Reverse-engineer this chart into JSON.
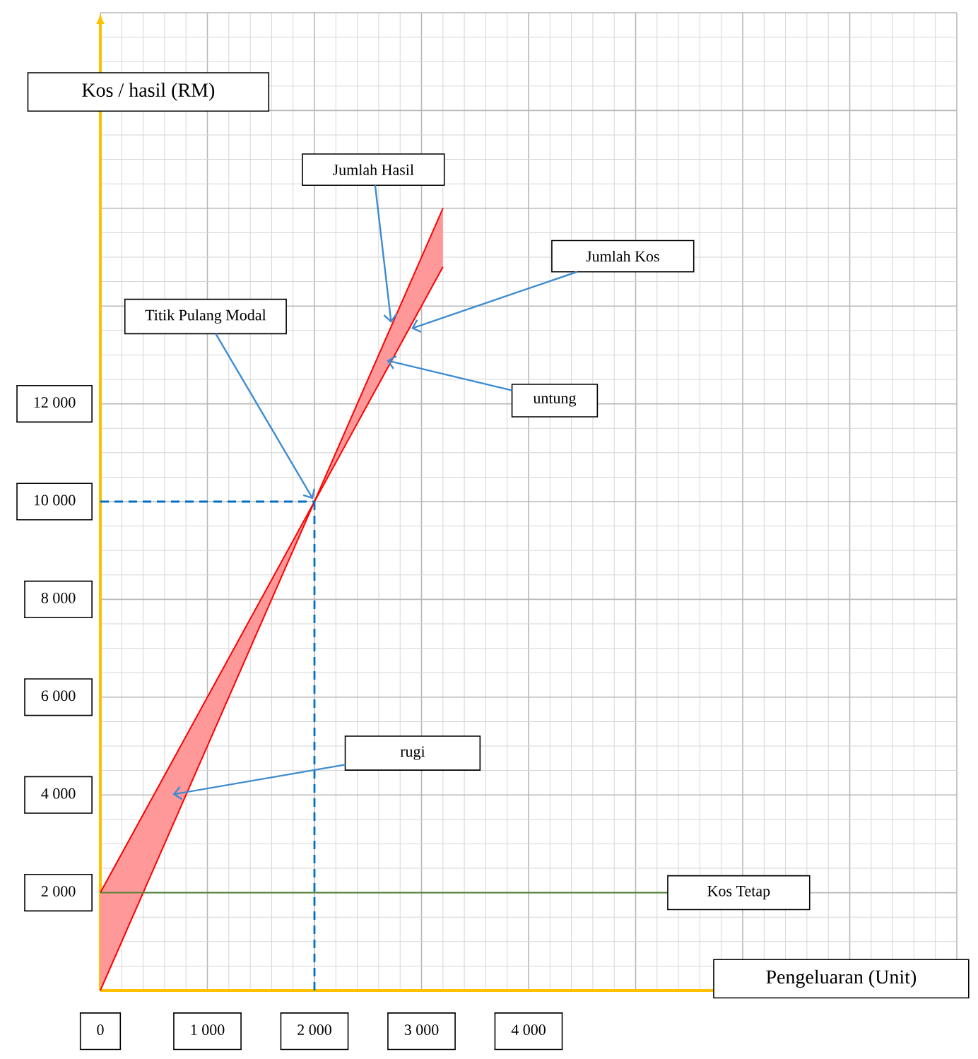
{
  "chart_data": {
    "type": "line",
    "xlabel": "Pengeluaran (Unit)",
    "ylabel": "Kos / hasil (RM)",
    "xlim": [
      0,
      8000
    ],
    "ylim": [
      0,
      20000
    ],
    "xticks": [
      0,
      {
        "value": 1000,
        "label": "1 000"
      },
      {
        "value": 2000,
        "label": "2 000"
      },
      {
        "value": 3000,
        "label": "3 000"
      },
      {
        "value": 4000,
        "label": "4 000"
      },
      {
        "value": 5000,
        "label": null
      },
      {
        "value": 6000,
        "label": null
      },
      {
        "value": 7000,
        "label": null
      },
      {
        "value": 8000,
        "label": null
      }
    ],
    "yticks": [
      {
        "value": 0,
        "label": null
      },
      {
        "value": 2000,
        "label": "2 000"
      },
      {
        "value": 4000,
        "label": "4 000"
      },
      {
        "value": 6000,
        "label": "6 000"
      },
      {
        "value": 8000,
        "label": "8 000"
      },
      {
        "value": 10000,
        "label": "10 000"
      },
      {
        "value": 12000,
        "label": "12 000"
      },
      {
        "value": 14000,
        "label": null
      },
      {
        "value": 16000,
        "label": null
      },
      {
        "value": 18000,
        "label": null
      },
      {
        "value": 20000,
        "label": null
      }
    ],
    "grid": true,
    "series": [
      {
        "name": "Jumlah Hasil",
        "color": "#ff0000",
        "x": [
          0,
          2000,
          3200
        ],
        "values": [
          0,
          10000,
          16000
        ],
        "lower": [
          0,
          10000,
          14800
        ],
        "upper": [
          2000,
          10000,
          16000
        ]
      },
      {
        "name": "Jumlah Kos",
        "color": "#ff0000",
        "x": [
          0,
          2000,
          3200
        ],
        "values": [
          2000,
          10000,
          14800
        ]
      },
      {
        "name": "Kos Tetap",
        "color": "#548235",
        "x": [
          0,
          5300
        ],
        "values": [
          2000,
          2000
        ]
      },
      {
        "color": "#0070c0",
        "line_style": "dashed",
        "x": [
          0,
          2000
        ],
        "values": [
          10000,
          10000
        ]
      },
      {
        "color": "#0070c0",
        "line_style": "dashed",
        "x": [
          2000,
          2000
        ],
        "values": [
          0,
          10000
        ]
      }
    ],
    "annotations": [
      {
        "text": "Titik Pulang Modal",
        "x": 2000,
        "y": 10000
      },
      "untung",
      "rugi"
    ]
  }
}
